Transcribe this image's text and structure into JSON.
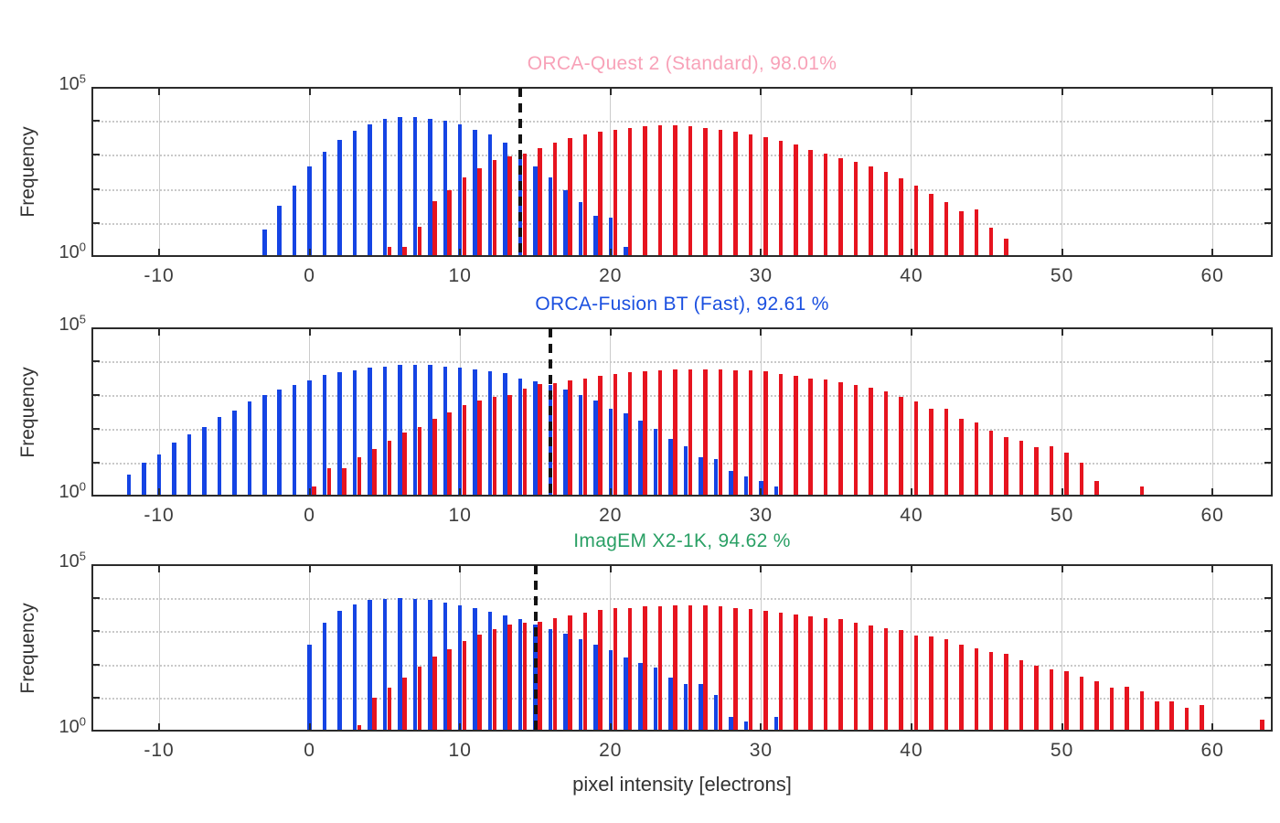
{
  "figure": {
    "xlabel": "pixel intensity [electrons]",
    "ylabel": "Frequency",
    "x_ticks": [
      -10,
      0,
      10,
      20,
      30,
      40,
      50,
      60
    ],
    "x_range": [
      -14.5,
      64
    ],
    "y_scale": "log",
    "y_decade_range": [
      0,
      5
    ],
    "y_top_label": {
      "base": "10",
      "exp": "5"
    },
    "y_bottom_label": {
      "base": "10",
      "exp": "0"
    },
    "colors": {
      "bar_blue": "#1544e4",
      "bar_red": "#e6141f",
      "grid": "#cccccc",
      "spine": "#2b2b2b",
      "threshold_line": "#131313",
      "tick_text": "#3d3d3d"
    }
  },
  "chart_data": [
    {
      "type": "bar",
      "id": "orca-quest-2-standard",
      "title": "ORCA-Quest 2 (Standard), 98.01%",
      "title_color": "#f8a2b8",
      "accuracy_percent": 98.01,
      "yscale": "log",
      "threshold_x": 14,
      "series": [
        {
          "name": "blue histogram",
          "color": "#1544e4",
          "bin_start": -3,
          "bin_step": 1,
          "log10_frequency": [
            0.8,
            1.5,
            2.1,
            2.65,
            3.1,
            3.45,
            3.7,
            3.9,
            4.05,
            4.1,
            4.1,
            4.05,
            4.0,
            3.9,
            3.75,
            3.6,
            3.35,
            3.0,
            2.65,
            2.35,
            1.95,
            1.6,
            1.2,
            1.15,
            0.3
          ],
          "extra_bins": []
        },
        {
          "name": "red histogram",
          "color": "#e6141f",
          "bin_start": 5,
          "bin_step": 1,
          "log10_frequency": [
            0.3,
            0.3,
            0.9,
            1.65,
            1.95,
            2.35,
            2.6,
            2.85,
            2.95,
            3.05,
            3.2,
            3.35,
            3.5,
            3.6,
            3.67,
            3.74,
            3.8,
            3.84,
            3.86,
            3.87,
            3.85,
            3.8,
            3.74,
            3.67,
            3.6,
            3.52,
            3.42,
            3.3,
            3.15,
            3.03,
            2.91,
            2.79,
            2.67,
            2.5,
            2.3,
            2.1,
            1.85,
            1.6,
            1.35,
            1.4,
            0.85,
            0.55
          ],
          "extra_bins": []
        }
      ]
    },
    {
      "type": "bar",
      "id": "orca-fusion-bt-fast",
      "title": "ORCA-Fusion BT (Fast), 92.61 %",
      "title_color": "#1b50e0",
      "accuracy_percent": 92.61,
      "yscale": "log",
      "threshold_x": 16,
      "series": [
        {
          "name": "blue histogram",
          "color": "#1544e4",
          "bin_start": -12,
          "bin_step": 1,
          "log10_frequency": [
            0.65,
            1.0,
            1.25,
            1.6,
            1.85,
            2.05,
            2.35,
            2.55,
            2.8,
            3.0,
            3.15,
            3.3,
            3.42,
            3.6,
            3.67,
            3.74,
            3.8,
            3.85,
            3.88,
            3.9,
            3.88,
            3.85,
            3.8,
            3.75,
            3.7,
            3.65,
            3.5,
            3.4,
            3.3,
            3.15,
            3.0,
            2.85,
            2.6,
            2.45,
            2.25,
            2.0,
            1.7,
            1.5,
            1.15,
            1.1,
            0.75,
            0.6,
            0.45,
            0.3
          ],
          "extra_bins": []
        },
        {
          "name": "red histogram",
          "color": "#e6141f",
          "bin_start": 0,
          "bin_step": 1,
          "log10_frequency": [
            0.3,
            0.85,
            0.85,
            1.15,
            1.4,
            1.65,
            1.9,
            2.05,
            2.3,
            2.5,
            2.7,
            2.85,
            2.95,
            3.0,
            3.2,
            3.33,
            3.36,
            3.42,
            3.5,
            3.58,
            3.62,
            3.67,
            3.71,
            3.74,
            3.76,
            3.77,
            3.77,
            3.76,
            3.74,
            3.72,
            3.7,
            3.62,
            3.58,
            3.5,
            3.45,
            3.38,
            3.3,
            3.22,
            3.1,
            2.95,
            2.8,
            2.6,
            2.6,
            2.3,
            2.2,
            1.95,
            1.75,
            1.65,
            1.45,
            1.5,
            1.3,
            1.0,
            0.45
          ],
          "extra_bins": [
            {
              "x": 55,
              "log10": 0.3
            }
          ]
        }
      ]
    },
    {
      "type": "bar",
      "id": "imagem-x2-1k",
      "title": "ImagEM X2-1K, 94.62 %",
      "title_color": "#2aa065",
      "accuracy_percent": 94.62,
      "yscale": "log",
      "threshold_x": 15,
      "series": [
        {
          "name": "blue histogram",
          "color": "#1544e4",
          "bin_start": 0,
          "bin_step": 1,
          "log10_frequency": [
            2.6,
            3.25,
            3.6,
            3.8,
            3.93,
            3.97,
            4.0,
            3.97,
            3.93,
            3.86,
            3.77,
            3.7,
            3.57,
            3.48,
            3.37,
            3.21,
            3.05,
            2.92,
            2.75,
            2.6,
            2.43,
            2.21,
            2.05,
            1.92,
            1.6,
            1.43,
            1.43,
            1.1,
            0.45,
            0.3
          ],
          "extra_bins": [
            {
              "x": 31,
              "log10": 0.45
            }
          ]
        },
        {
          "name": "red histogram",
          "color": "#e6141f",
          "bin_start": 3,
          "bin_step": 1,
          "log10_frequency": [
            0.2,
            1.0,
            1.3,
            1.6,
            1.95,
            2.25,
            2.45,
            2.7,
            2.9,
            3.05,
            3.2,
            3.26,
            3.28,
            3.4,
            3.47,
            3.55,
            3.63,
            3.68,
            3.7,
            3.73,
            3.75,
            3.76,
            3.77,
            3.76,
            3.74,
            3.7,
            3.65,
            3.6,
            3.54,
            3.51,
            3.44,
            3.38,
            3.35,
            3.24,
            3.17,
            3.08,
            3.02,
            2.86,
            2.84,
            2.75,
            2.59,
            2.48,
            2.39,
            2.31,
            2.12,
            1.98,
            1.87,
            1.8,
            1.63,
            1.5,
            1.32,
            1.34,
            1.2,
            0.9,
            0.9,
            0.7,
            0.8
          ],
          "extra_bins": [
            {
              "x": 63,
              "log10": 0.35
            }
          ]
        }
      ]
    }
  ]
}
